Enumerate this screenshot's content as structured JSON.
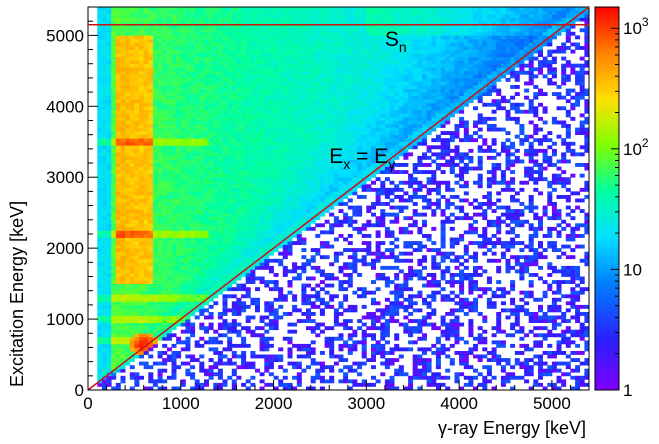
{
  "chart_data": {
    "type": "heatmap",
    "title": "",
    "xlabel": "γ-ray Energy [keV]",
    "ylabel": "Excitation Energy [keV]",
    "xlim": [
      0,
      5400
    ],
    "ylim": [
      0,
      5400
    ],
    "x_ticks": [
      0,
      1000,
      2000,
      3000,
      4000,
      5000
    ],
    "y_ticks": [
      0,
      1000,
      2000,
      3000,
      4000,
      5000
    ],
    "x_tick_labels": [
      "0",
      "1000",
      "2000",
      "3000",
      "4000",
      "5000"
    ],
    "y_tick_labels": [
      "0",
      "1000",
      "2000",
      "3000",
      "4000",
      "5000"
    ],
    "color_scale": "log",
    "zlim": [
      1,
      1500
    ],
    "colorbar_ticks": [
      {
        "value": 1,
        "base": "1",
        "exp": ""
      },
      {
        "value": 10,
        "base": "10",
        "exp": ""
      },
      {
        "value": 100,
        "base": "10",
        "exp": "2"
      },
      {
        "value": 1000,
        "base": "10",
        "exp": "3"
      }
    ],
    "grid": false,
    "overlays": [
      {
        "kind": "horizontal-line",
        "y": 5150,
        "color": "#cc1111",
        "label_base": "S",
        "label_sub": "n",
        "label_pos": [
          3200,
          4850
        ]
      },
      {
        "kind": "diagonal-line",
        "from": [
          0,
          0
        ],
        "to": [
          5400,
          5400
        ],
        "color": "#cc1111",
        "label_text": "E",
        "label_sub1": "x",
        "label_mid": " = E",
        "label_sub2": "γ",
        "label_pos": [
          2600,
          3200
        ]
      }
    ],
    "density_features": [
      {
        "region": "strong vertical band",
        "x_range": [
          300,
          700
        ],
        "y_range": [
          1500,
          5000
        ],
        "counts": 500
      },
      {
        "region": "horizontal ridges",
        "y_values": [
          700,
          1000,
          1300,
          2200,
          3500
        ],
        "counts": 250
      },
      {
        "region": "hot spot",
        "x": 600,
        "y": 650,
        "counts": 1400
      },
      {
        "region": "below diagonal",
        "counts": 2
      }
    ]
  }
}
